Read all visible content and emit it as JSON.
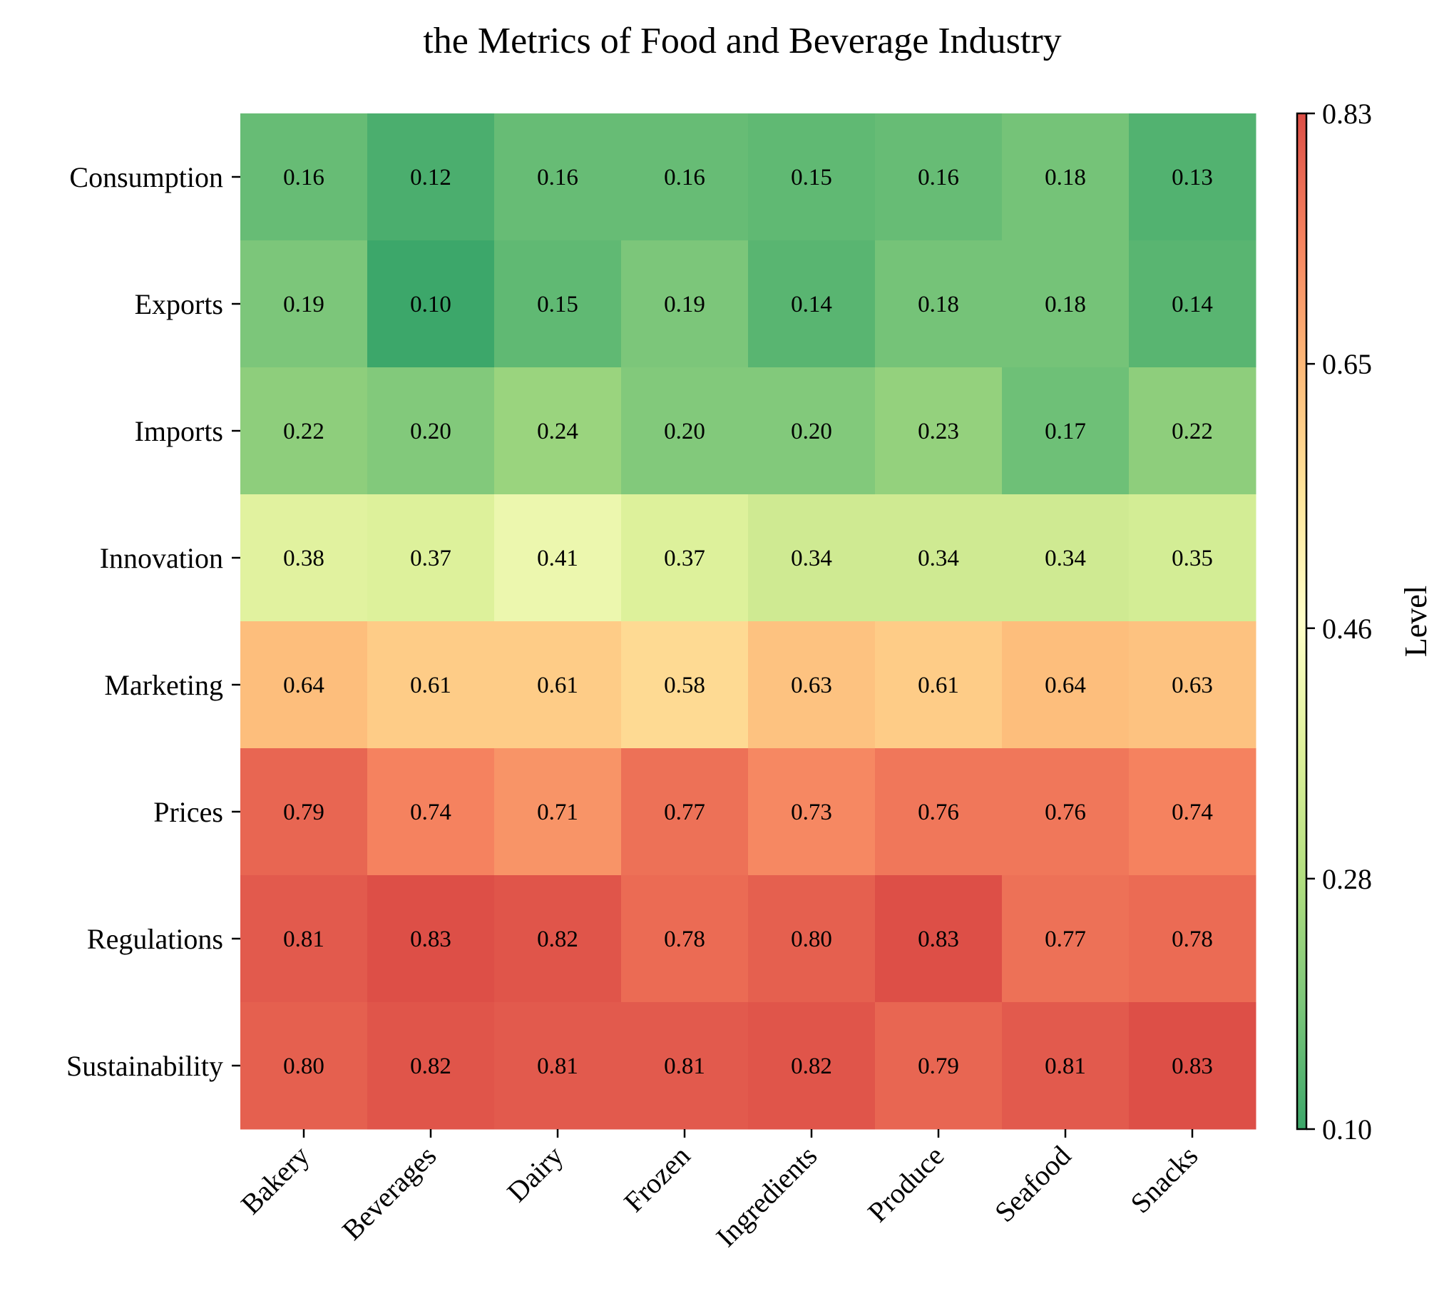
{
  "chart_data": {
    "type": "heatmap",
    "title": "the Metrics of Food and Beverage Industry",
    "columns": [
      "Bakery",
      "Beverages",
      "Dairy",
      "Frozen",
      "Ingredients",
      "Produce",
      "Seafood",
      "Snacks"
    ],
    "rows": [
      "Consumption",
      "Exports",
      "Imports",
      "Innovation",
      "Marketing",
      "Prices",
      "Regulations",
      "Sustainability"
    ],
    "values": [
      [
        0.16,
        0.12,
        0.16,
        0.16,
        0.15,
        0.16,
        0.18,
        0.13
      ],
      [
        0.19,
        0.1,
        0.15,
        0.19,
        0.14,
        0.18,
        0.18,
        0.14
      ],
      [
        0.22,
        0.2,
        0.24,
        0.2,
        0.2,
        0.23,
        0.17,
        0.22
      ],
      [
        0.38,
        0.37,
        0.41,
        0.37,
        0.34,
        0.34,
        0.34,
        0.35
      ],
      [
        0.64,
        0.61,
        0.61,
        0.58,
        0.63,
        0.61,
        0.64,
        0.63
      ],
      [
        0.79,
        0.74,
        0.71,
        0.77,
        0.73,
        0.76,
        0.76,
        0.74
      ],
      [
        0.81,
        0.83,
        0.82,
        0.78,
        0.8,
        0.83,
        0.77,
        0.78
      ],
      [
        0.8,
        0.82,
        0.81,
        0.81,
        0.82,
        0.79,
        0.81,
        0.83
      ]
    ],
    "value_labels": [
      [
        "0.16",
        "0.12",
        "0.16",
        "0.16",
        "0.15",
        "0.16",
        "0.18",
        "0.13"
      ],
      [
        "0.19",
        "0.10",
        "0.15",
        "0.19",
        "0.14",
        "0.18",
        "0.18",
        "0.14"
      ],
      [
        "0.22",
        "0.20",
        "0.24",
        "0.20",
        "0.20",
        "0.23",
        "0.17",
        "0.22"
      ],
      [
        "0.38",
        "0.37",
        "0.41",
        "0.37",
        "0.34",
        "0.34",
        "0.34",
        "0.35"
      ],
      [
        "0.64",
        "0.61",
        "0.61",
        "0.58",
        "0.63",
        "0.61",
        "0.64",
        "0.63"
      ],
      [
        "0.79",
        "0.74",
        "0.71",
        "0.77",
        "0.73",
        "0.76",
        "0.76",
        "0.74"
      ],
      [
        "0.81",
        "0.83",
        "0.82",
        "0.78",
        "0.80",
        "0.83",
        "0.77",
        "0.78"
      ],
      [
        "0.80",
        "0.82",
        "0.81",
        "0.81",
        "0.82",
        "0.79",
        "0.81",
        "0.83"
      ]
    ],
    "colorbar": {
      "label": "Level",
      "range": [
        0.1,
        0.83
      ],
      "ticks": [
        0.1,
        0.28,
        0.46,
        0.65,
        0.83
      ],
      "tick_labels": [
        "0.10",
        "0.28",
        "0.46",
        "0.65",
        "0.83"
      ],
      "colormap": [
        "#1a9850",
        "#66bd63",
        "#a6d96a",
        "#d9ef8b",
        "#ffffbf",
        "#fee08b",
        "#fdae61",
        "#f46d43",
        "#d73027"
      ],
      "alpha": 0.85
    },
    "grid": false,
    "legend": "colorbar-right"
  }
}
